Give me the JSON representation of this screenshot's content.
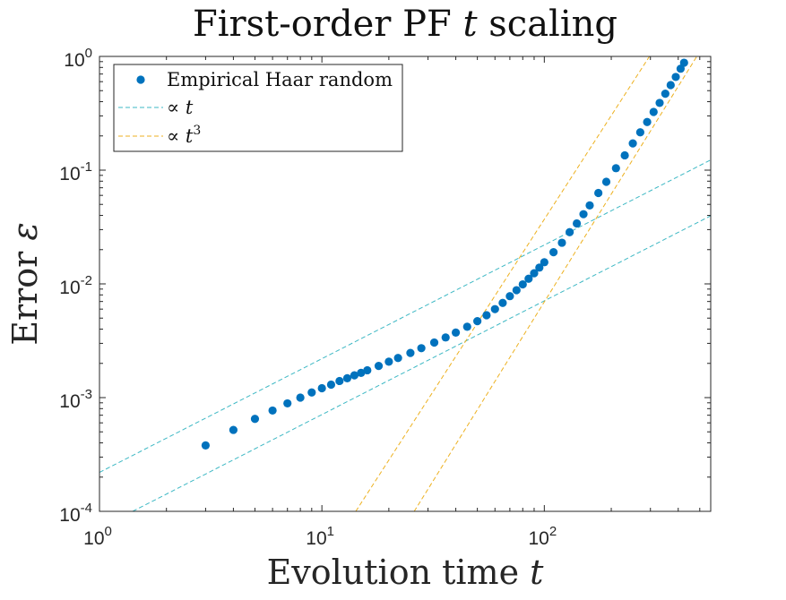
{
  "chart_data": {
    "type": "scatter",
    "title": {
      "text": "First-order PF ",
      "var": "t",
      "suffix": " scaling"
    },
    "xlabel": {
      "text": "Evolution time ",
      "var": "t"
    },
    "ylabel": {
      "text": "Error ",
      "var": "ε"
    },
    "xscale": "log",
    "yscale": "log",
    "xlim": [
      1,
      560
    ],
    "ylim": [
      0.0001,
      1
    ],
    "x_ticks": [
      {
        "base": "10",
        "exp": "0",
        "value": 1
      },
      {
        "base": "10",
        "exp": "1",
        "value": 10
      },
      {
        "base": "10",
        "exp": "2",
        "value": 100
      }
    ],
    "y_ticks": [
      {
        "base": "10",
        "exp": "-4",
        "value": 0.0001
      },
      {
        "base": "10",
        "exp": "-3",
        "value": 0.001
      },
      {
        "base": "10",
        "exp": "-2",
        "value": 0.01
      },
      {
        "base": "10",
        "exp": "-1",
        "value": 0.1
      },
      {
        "base": "10",
        "exp": "0",
        "value": 1
      }
    ],
    "legend": {
      "position": "top-left",
      "entries": [
        {
          "label": "Empirical Haar random",
          "style": "marker"
        },
        {
          "label": "∝ ",
          "var": "t",
          "sup": "",
          "style": "dashed",
          "color": "#3db8c4"
        },
        {
          "label": "∝ ",
          "var": "t",
          "sup": "3",
          "style": "dashed",
          "color": "#edb120"
        }
      ]
    },
    "series": [
      {
        "name": "Empirical Haar random",
        "color": "#0072bd",
        "x": [
          3,
          4,
          5,
          6,
          7,
          8,
          9,
          10,
          11,
          12,
          13,
          14,
          15,
          16,
          18,
          20,
          22,
          25,
          28,
          32,
          36,
          40,
          45,
          50,
          55,
          60,
          65,
          70,
          75,
          80,
          85,
          90,
          95,
          100,
          110,
          120,
          130,
          140,
          150,
          160,
          175,
          190,
          210,
          230,
          250,
          270,
          290,
          310,
          330,
          350,
          370,
          390,
          410,
          425
        ],
        "y": [
          0.00038,
          0.00052,
          0.00065,
          0.00077,
          0.00089,
          0.001,
          0.00111,
          0.00121,
          0.0013,
          0.0014,
          0.00148,
          0.00157,
          0.00165,
          0.00174,
          0.0019,
          0.00207,
          0.00223,
          0.00247,
          0.00272,
          0.00305,
          0.00338,
          0.00373,
          0.0042,
          0.0047,
          0.0053,
          0.006,
          0.0068,
          0.0078,
          0.0088,
          0.0099,
          0.0111,
          0.0124,
          0.0139,
          0.0155,
          0.019,
          0.023,
          0.0285,
          0.034,
          0.041,
          0.049,
          0.063,
          0.079,
          0.104,
          0.135,
          0.172,
          0.215,
          0.265,
          0.325,
          0.39,
          0.47,
          0.56,
          0.66,
          0.78,
          0.88
        ]
      },
      {
        "name": "∝ t (upper)",
        "color": "#3db8c4",
        "style": "dashed",
        "x": [
          1,
          560
        ],
        "y": [
          0.00022,
          0.123
        ]
      },
      {
        "name": "∝ t (lower)",
        "color": "#3db8c4",
        "style": "dashed",
        "x": [
          1.41,
          560
        ],
        "y": [
          0.0001,
          0.0397
        ]
      },
      {
        "name": "∝ t^3 (left)",
        "color": "#edb120",
        "style": "dashed",
        "x": [
          14.2,
          297
        ],
        "y": [
          0.0001,
          1
        ]
      },
      {
        "name": "∝ t^3 (right)",
        "color": "#edb120",
        "style": "dashed",
        "x": [
          26,
          485
        ],
        "y": [
          0.0001,
          1
        ]
      }
    ]
  }
}
